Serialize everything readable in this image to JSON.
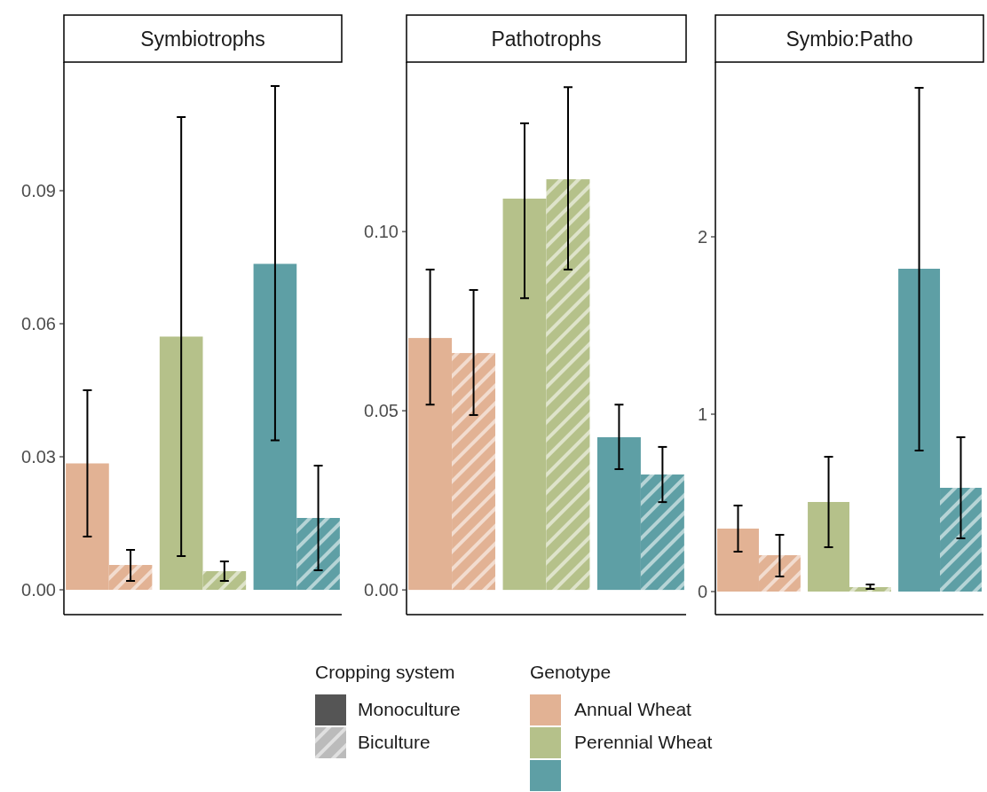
{
  "chart_data": [
    {
      "type": "bar",
      "title": "Symbiotrophs",
      "categories": [
        null,
        null,
        null
      ],
      "ylim": [
        -0.0056,
        0.119
      ],
      "yticks": [
        {
          "value": 0,
          "label": "0.00"
        },
        {
          "value": 0.03,
          "label": "0.03"
        },
        {
          "value": 0.06,
          "label": "0.06"
        },
        {
          "value": 0.09,
          "label": "0.09"
        }
      ],
      "legend": "bottom",
      "legend_title": "Cropping system",
      "annotations": [
        "Genotype",
        "Annual Wheat",
        "Perennial Wheat"
      ],
      "series": [
        {
          "name": "Monoculture",
          "color": "#555555",
          "colors": [
            "#e2b294",
            "#b5c18a",
            "#5e9fa5"
          ],
          "values": [
            0.0285,
            0.0571,
            0.0735
          ],
          "errors": [
            [
              0.012,
              0.045
            ],
            [
              0.0076,
              0.1066
            ],
            [
              0.0337,
              0.1136
            ]
          ]
        },
        {
          "name": "Biculture",
          "color": "#bbbbbb",
          "colors": [
            "#e2b294",
            "#b5c18a",
            "#5e9fa5"
          ],
          "values": [
            0.0056,
            0.0042,
            0.0162
          ],
          "errors": [
            [
              0.002,
              0.009
            ],
            [
              0.002,
              0.0064
            ],
            [
              0.0044,
              0.028
            ]
          ]
        }
      ]
    },
    {
      "type": "bar",
      "title": "Pathotrophs",
      "categories": [
        null,
        null,
        null
      ],
      "ylim": [
        -0.0069,
        0.1473
      ],
      "yticks": [
        {
          "value": 0,
          "label": "0.00"
        },
        {
          "value": 0.05,
          "label": "0.05"
        },
        {
          "value": 0.1,
          "label": "0.10"
        }
      ],
      "series": [
        {
          "color": "#555555",
          "colors": [
            "#e2b294",
            "#b5c18a",
            "#5e9fa5"
          ],
          "values": [
            0.0703,
            0.1092,
            0.0426
          ],
          "errors": [
            [
              0.0517,
              0.0894
            ],
            [
              0.0814,
              0.1302
            ],
            [
              0.0337,
              0.0517
            ]
          ]
        },
        {
          "color": "#bbbbbb",
          "colors": [
            "#e2b294",
            "#b5c18a",
            "#5e9fa5"
          ],
          "values": [
            0.0661,
            0.1146,
            0.0322
          ],
          "errors": [
            [
              0.0488,
              0.0837
            ],
            [
              0.0894,
              0.1403
            ],
            [
              0.0245,
              0.0399
            ]
          ]
        }
      ]
    },
    {
      "type": "bar",
      "title": "Symbio:Patho",
      "categories": [
        null,
        null,
        null
      ],
      "ylim": [
        -0.13,
        2.985
      ],
      "yticks": [
        0,
        1,
        2
      ],
      "series": [
        {
          "color": "#555555",
          "colors": [
            "#e2b294",
            "#b5c18a",
            "#5e9fa5"
          ],
          "values": [
            0.355,
            0.505,
            1.82
          ],
          "errors": [
            [
              0.225,
              0.485
            ],
            [
              0.25,
              0.76
            ],
            [
              0.795,
              2.84
            ]
          ]
        },
        {
          "color": "#bbbbbb",
          "colors": [
            "#e2b294",
            "#b5c18a",
            "#5e9fa5"
          ],
          "values": [
            0.205,
            0.025,
            0.585
          ],
          "errors": [
            [
              0.085,
              0.32
            ],
            [
              0.015,
              0.04
            ],
            [
              0.3,
              0.87
            ]
          ]
        }
      ]
    }
  ]
}
